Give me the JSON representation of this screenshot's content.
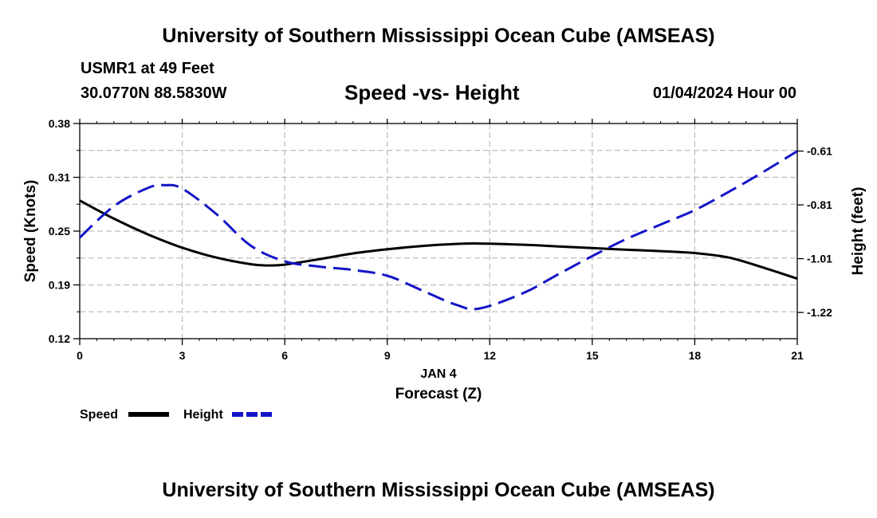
{
  "header": {
    "title": "University of Southern Mississippi Ocean Cube (AMSEAS)",
    "station": "USMR1 at 49 Feet",
    "coords": "30.0770N  88.5830W",
    "date": "01/04/2024 Hour 00"
  },
  "footer": {
    "title": "University of Southern Mississippi Ocean Cube (AMSEAS)"
  },
  "chart_data": {
    "type": "line",
    "title": "Speed -vs- Height",
    "xlabel": "Forecast (Z)",
    "xsublabel": "JAN 4",
    "ylabel_left": "Speed (Knots)",
    "ylabel_right": "Height (feet)",
    "x_ticks": [
      0,
      3,
      6,
      9,
      12,
      15,
      18,
      21
    ],
    "xlim": [
      0,
      21
    ],
    "y_left_ticks": [
      "0.12",
      "0.19",
      "0.25",
      "0.31",
      "0.38"
    ],
    "y_left_tick_values": [
      0.12,
      0.185,
      0.25,
      0.315,
      0.38
    ],
    "ylim_left": [
      0.12,
      0.38
    ],
    "y_right_ticks": [
      "-1.22",
      "-1.01",
      "-0.81",
      "-0.61"
    ],
    "y_right_tick_values": [
      -1.22,
      -1.015,
      -0.81,
      -0.605
    ],
    "ylim_right": [
      -1.32,
      -0.5
    ],
    "grid": true,
    "legend_position": "bottom-left",
    "series": [
      {
        "name": "Speed",
        "axis": "left",
        "color": "#000000",
        "dash": "solid",
        "x": [
          0,
          1,
          2,
          3,
          4,
          5,
          5.5,
          6,
          7,
          8,
          9,
          10,
          11,
          11.7,
          13,
          14,
          15,
          16,
          17,
          18,
          19,
          20,
          21
        ],
        "y": [
          0.287,
          0.265,
          0.246,
          0.23,
          0.218,
          0.21,
          0.2085,
          0.2095,
          0.216,
          0.223,
          0.228,
          0.232,
          0.2345,
          0.235,
          0.2335,
          0.2315,
          0.2295,
          0.2275,
          0.2258,
          0.2235,
          0.218,
          0.206,
          0.1925
        ]
      },
      {
        "name": "Height",
        "axis": "right",
        "color": "#1515c8",
        "dash": "dashed",
        "x": [
          0,
          1,
          2,
          2.5,
          3,
          4,
          5,
          6,
          7,
          8,
          9,
          10,
          11,
          11.7,
          13,
          14,
          15,
          16,
          17,
          18,
          19,
          20,
          21
        ],
        "y": [
          -0.935,
          -0.815,
          -0.745,
          -0.735,
          -0.748,
          -0.845,
          -0.965,
          -1.025,
          -1.045,
          -1.058,
          -1.08,
          -1.135,
          -1.19,
          -1.205,
          -1.145,
          -1.075,
          -1.005,
          -0.94,
          -0.885,
          -0.83,
          -0.76,
          -0.685,
          -0.605
        ]
      }
    ]
  }
}
